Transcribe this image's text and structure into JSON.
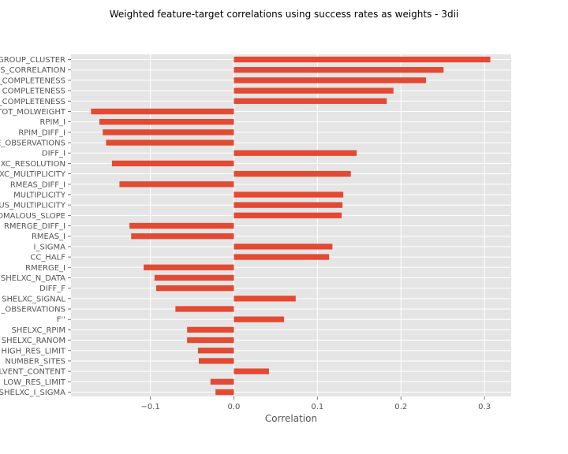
{
  "chart_data": {
    "type": "bar",
    "orientation": "horizontal",
    "title": "Weighted feature-target correlations using success rates as weights - 3dii",
    "xlabel": "Correlation",
    "ylabel": "",
    "xlim": [
      -0.195,
      0.332
    ],
    "xticks": [
      -0.1,
      0.0,
      0.1,
      0.2,
      0.3
    ],
    "xtick_labels": [
      "−0.1",
      "0.0",
      "0.1",
      "0.2",
      "0.3"
    ],
    "grid": true,
    "legend": "none",
    "bar_color": "#E24A33",
    "background_color": "#E5E5E5",
    "grid_color": "#FFFFFF",
    "categories": [
      "GROUP_CLUSTER",
      "S_CORRELATION",
      "_COMPLETENESS",
      "COMPLETENESS",
      "_COMPLETENESS",
      "TOT_MOLWEIGHT",
      "RPIM_I",
      "RPIM_DIFF_I",
      "E_OBSERVATIONS",
      "DIFF_I",
      "XC_RESOLUTION",
      "XC_MULTIPLICITY",
      "RMEAS_DIFF_I",
      "MULTIPLICITY",
      "US_MULTIPLICITY",
      "OMALOUS_SLOPE",
      "RMERGE_DIFF_I",
      "RMEAS_I",
      "I_SIGMA",
      "CC_HALF",
      "RMERGE_I",
      "SHELXC_N_DATA",
      "DIFF_F",
      "SHELXC_SIGNAL",
      "_OBSERVATIONS",
      "F''",
      "SHELXC_RPIM",
      "SHELXC_RANOM",
      "HIGH_RES_LIMIT",
      "NUMBER_SITES",
      "LVENT_CONTENT",
      "LOW_RES_LIMIT",
      "SHELXC_I_SIGMA"
    ],
    "values": [
      0.307,
      0.251,
      0.23,
      0.191,
      0.183,
      -0.171,
      -0.161,
      -0.157,
      -0.153,
      0.147,
      -0.146,
      0.14,
      -0.137,
      0.131,
      0.13,
      0.129,
      -0.125,
      -0.123,
      0.118,
      0.114,
      -0.108,
      -0.095,
      -0.093,
      0.074,
      -0.07,
      0.06,
      -0.056,
      -0.056,
      -0.043,
      -0.042,
      0.042,
      -0.028,
      -0.022
    ]
  }
}
